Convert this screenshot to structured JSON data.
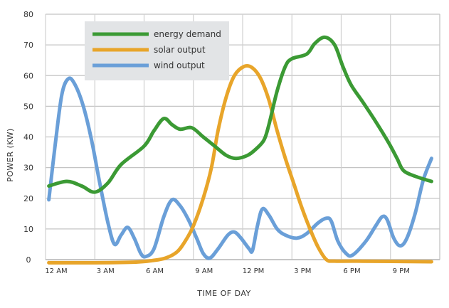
{
  "chart_data": {
    "type": "line",
    "title": "",
    "xlabel": "TIME OF DAY",
    "ylabel": "POWER (KW)",
    "xlim": [
      0,
      24
    ],
    "ylim": [
      0,
      80
    ],
    "grid": true,
    "legend_placement": "top-left",
    "x_ticks": [
      {
        "hour": 0,
        "label": "12 AM"
      },
      {
        "hour": 3,
        "label": "3 AM"
      },
      {
        "hour": 6,
        "label": "6 AM"
      },
      {
        "hour": 9,
        "label": "9 AM"
      },
      {
        "hour": 12,
        "label": "12 PM"
      },
      {
        "hour": 15,
        "label": "3 PM"
      },
      {
        "hour": 18,
        "label": "6 PM"
      },
      {
        "hour": 21,
        "label": "9 PM"
      }
    ],
    "y_ticks": [
      0,
      10,
      20,
      30,
      40,
      50,
      60,
      70,
      80
    ],
    "series": [
      {
        "name": "energy demand",
        "color": "#3b9a34",
        "points": [
          [
            0.2,
            24
          ],
          [
            1.3,
            25.5
          ],
          [
            2.2,
            24
          ],
          [
            3,
            22
          ],
          [
            3.8,
            25
          ],
          [
            4.6,
            31
          ],
          [
            6,
            37
          ],
          [
            6.6,
            42
          ],
          [
            7.2,
            46
          ],
          [
            7.7,
            44
          ],
          [
            8.2,
            42.5
          ],
          [
            8.9,
            43
          ],
          [
            9.6,
            40
          ],
          [
            10.3,
            37
          ],
          [
            11,
            34
          ],
          [
            11.6,
            33
          ],
          [
            12.3,
            34
          ],
          [
            12.8,
            36
          ],
          [
            13.3,
            39
          ],
          [
            13.6,
            44
          ],
          [
            14.1,
            55
          ],
          [
            14.6,
            63
          ],
          [
            15,
            65.5
          ],
          [
            15.9,
            67
          ],
          [
            16.4,
            70.5
          ],
          [
            17,
            72.5
          ],
          [
            17.6,
            70
          ],
          [
            18.1,
            63
          ],
          [
            18.6,
            57
          ],
          [
            19.3,
            51.5
          ],
          [
            20.1,
            45
          ],
          [
            20.9,
            38
          ],
          [
            21.4,
            33
          ],
          [
            21.8,
            29
          ],
          [
            22.6,
            27
          ],
          [
            23.5,
            25.5
          ]
        ]
      },
      {
        "name": "solar output",
        "color": "#e8a52a",
        "points": [
          [
            0.2,
            -1
          ],
          [
            3,
            -1
          ],
          [
            5.5,
            -0.8
          ],
          [
            6.5,
            -0.3
          ],
          [
            7.3,
            0.5
          ],
          [
            8,
            2.5
          ],
          [
            8.5,
            6
          ],
          [
            9,
            11
          ],
          [
            9.6,
            20
          ],
          [
            10.1,
            30
          ],
          [
            10.5,
            42
          ],
          [
            11,
            53
          ],
          [
            11.5,
            60
          ],
          [
            12.1,
            63
          ],
          [
            12.6,
            62.5
          ],
          [
            13.1,
            59
          ],
          [
            13.6,
            52
          ],
          [
            14.1,
            42
          ],
          [
            14.6,
            33
          ],
          [
            15.1,
            25
          ],
          [
            15.6,
            17
          ],
          [
            16.1,
            10
          ],
          [
            16.6,
            4
          ],
          [
            17.1,
            0
          ],
          [
            17.6,
            -0.5
          ],
          [
            19,
            -0.5
          ],
          [
            23.5,
            -0.7
          ]
        ]
      },
      {
        "name": "wind output",
        "color": "#6a9fd8",
        "points": [
          [
            0.2,
            19.5
          ],
          [
            0.6,
            38
          ],
          [
            1,
            54
          ],
          [
            1.4,
            59
          ],
          [
            1.8,
            57
          ],
          [
            2.3,
            50
          ],
          [
            2.8,
            39
          ],
          [
            3.3,
            25
          ],
          [
            3.8,
            12
          ],
          [
            4.2,
            5
          ],
          [
            4.6,
            8
          ],
          [
            5,
            10.5
          ],
          [
            5.4,
            7
          ],
          [
            5.8,
            2
          ],
          [
            6.1,
            1
          ],
          [
            6.6,
            3.5
          ],
          [
            7.2,
            14
          ],
          [
            7.7,
            19.5
          ],
          [
            8.2,
            17.5
          ],
          [
            8.7,
            13
          ],
          [
            9.2,
            7
          ],
          [
            9.6,
            2
          ],
          [
            10,
            0.5
          ],
          [
            10.5,
            3.5
          ],
          [
            11.1,
            8
          ],
          [
            11.5,
            9
          ],
          [
            11.9,
            7
          ],
          [
            12.4,
            3.5
          ],
          [
            12.6,
            3
          ],
          [
            12.9,
            11
          ],
          [
            13.2,
            16.5
          ],
          [
            13.6,
            14.5
          ],
          [
            14.1,
            10
          ],
          [
            14.6,
            8
          ],
          [
            15.3,
            7
          ],
          [
            15.9,
            8.5
          ],
          [
            16.6,
            12
          ],
          [
            17.1,
            13.5
          ],
          [
            17.4,
            12.5
          ],
          [
            17.8,
            6
          ],
          [
            18.3,
            2
          ],
          [
            18.7,
            1.5
          ],
          [
            19.5,
            6
          ],
          [
            20.1,
            11
          ],
          [
            20.5,
            14
          ],
          [
            20.8,
            13
          ],
          [
            21.2,
            7
          ],
          [
            21.6,
            4.5
          ],
          [
            22,
            7
          ],
          [
            22.5,
            15
          ],
          [
            23,
            26
          ],
          [
            23.5,
            33
          ]
        ]
      }
    ]
  }
}
